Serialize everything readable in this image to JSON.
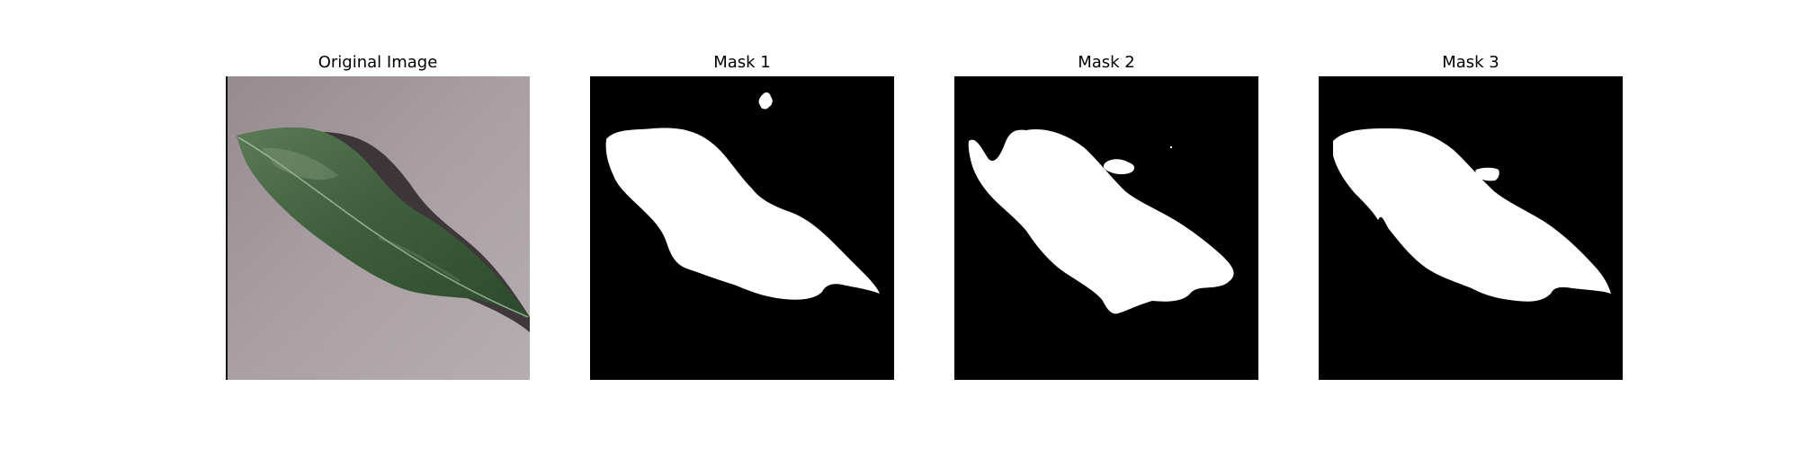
{
  "panels": [
    {
      "title": "Original Image",
      "kind": "photo"
    },
    {
      "title": "Mask 1",
      "kind": "mask"
    },
    {
      "title": "Mask 2",
      "kind": "mask"
    },
    {
      "title": "Mask 3",
      "kind": "mask"
    }
  ],
  "colors": {
    "background_photo": "#9c9096",
    "leaf_dark": "#2e4a2e",
    "leaf_mid": "#466a44",
    "leaf_light": "#6b8a66",
    "shadow": "#2a2527",
    "mask_bg": "#000000",
    "mask_fg": "#ffffff"
  }
}
